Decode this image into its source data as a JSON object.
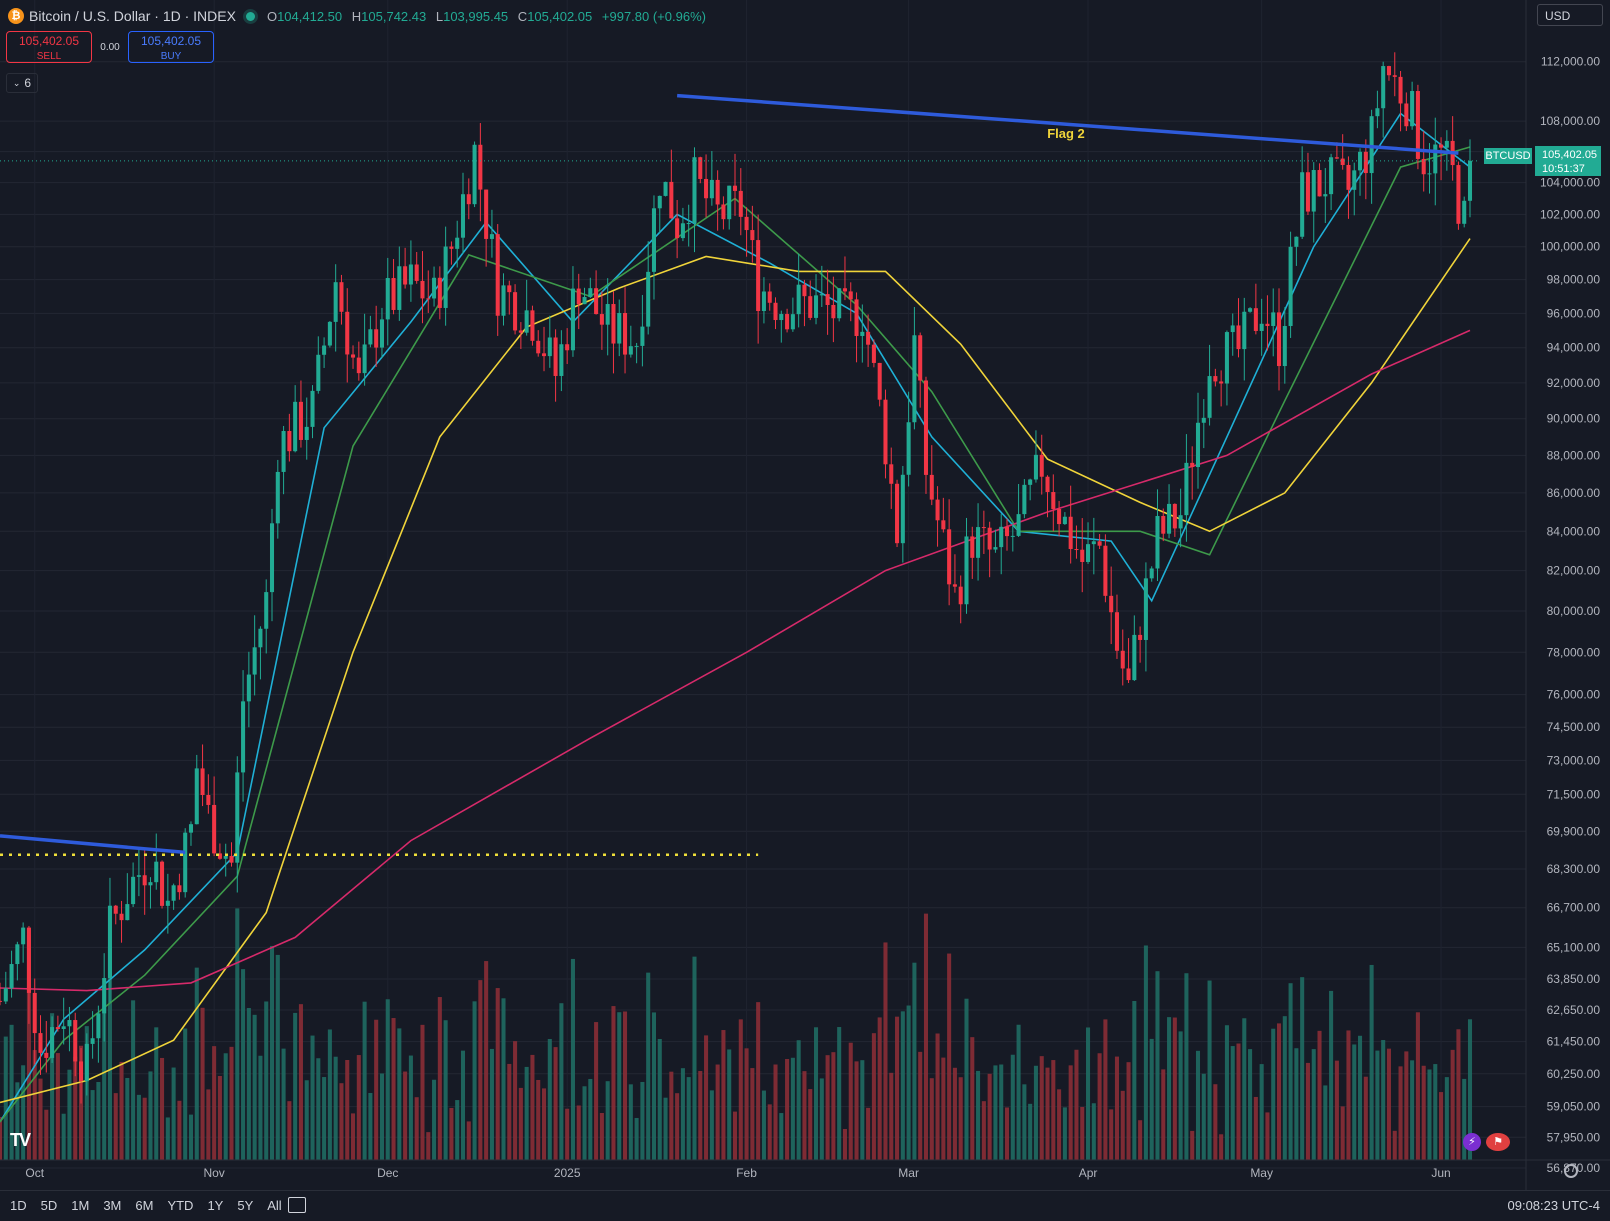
{
  "header": {
    "coin_icon": "bitcoin-icon",
    "symbol_title": "Bitcoin / U.S. Dollar · 1D · INDEX",
    "open_label": "O",
    "open": "104,412.50",
    "high_label": "H",
    "high": "105,742.43",
    "low_label": "L",
    "low": "103,995.45",
    "close_label": "C",
    "close": "105,402.05",
    "change": "+997.80 (+0.96%)"
  },
  "trade": {
    "sell_price": "105,402.05",
    "sell_label": "SELL",
    "spread": "0.00",
    "buy_price": "105,402.05",
    "buy_label": "BUY"
  },
  "indicators_toggle": "6",
  "currency": "USD",
  "price_axis": {
    "labels": [
      "112,000.00",
      "108,000.00",
      "106,000.00",
      "104,000.00",
      "102,000.00",
      "100,000.00",
      "98,000.00",
      "96,000.00",
      "94,000.00",
      "92,000.00",
      "90,000.00",
      "88,000.00",
      "86,000.00",
      "84,000.00",
      "82,000.00",
      "80,000.00",
      "78,000.00",
      "76,000.00",
      "74,500.00",
      "73,000.00",
      "71,500.00",
      "69,900.00",
      "68,300.00",
      "66,700.00",
      "65,100.00",
      "63,850.00",
      "62,650.00",
      "61,450.00",
      "60,250.00",
      "59,050.00",
      "57,950.00",
      "56,870.00"
    ],
    "last_price_tag": "105,402.05",
    "countdown": "10:51:37",
    "symbol_tag": "BTCUSD"
  },
  "time_axis": {
    "labels": [
      "Oct",
      "Nov",
      "Dec",
      "2025",
      "Feb",
      "Mar",
      "Apr",
      "May",
      "Jun"
    ]
  },
  "annotations": {
    "flag_label": "Flag 2"
  },
  "bottom": {
    "ranges": [
      "1D",
      "5D",
      "1M",
      "3M",
      "6M",
      "YTD",
      "1Y",
      "5Y",
      "All"
    ],
    "clock": "09:08:23 UTC-4",
    "logo": "TV"
  },
  "colors": {
    "background": "#161a25",
    "up": "#22ab94",
    "down": "#f23645",
    "ma_fast": "#1fb0d6",
    "ma_mid": "#3d9a4a",
    "ma_slow": "#f0d43a",
    "ma_long": "#d62a6a",
    "trendline": "#2e5bdb",
    "support": "#f0e03a"
  },
  "chart_data": {
    "type": "candlestick",
    "title": "Bitcoin / U.S. Dollar · 1D · INDEX",
    "x_range": [
      "2024-09-25",
      "2025-06-06"
    ],
    "y_scale": "log",
    "y_range": [
      56870,
      113500
    ],
    "grid": true,
    "anchors": [
      [
        "2024-09-25",
        63000
      ],
      [
        "2024-09-29",
        65500
      ],
      [
        "2024-10-02",
        61200
      ],
      [
        "2024-10-06",
        62600
      ],
      [
        "2024-10-10",
        60400
      ],
      [
        "2024-10-14",
        65800
      ],
      [
        "2024-10-17",
        67400
      ],
      [
        "2024-10-21",
        68900
      ],
      [
        "2024-10-24",
        66900
      ],
      [
        "2024-10-28",
        69900
      ],
      [
        "2024-10-29",
        72700
      ],
      [
        "2024-10-31",
        70500
      ],
      [
        "2024-11-04",
        68500
      ],
      [
        "2024-11-06",
        75800
      ],
      [
        "2024-11-10",
        80500
      ],
      [
        "2024-11-12",
        88500
      ],
      [
        "2024-11-18",
        90500
      ],
      [
        "2024-11-22",
        98000
      ],
      [
        "2024-11-26",
        91800
      ],
      [
        "2024-11-30",
        96400
      ],
      [
        "2024-12-05",
        97800
      ],
      [
        "2024-12-09",
        96800
      ],
      [
        "2024-12-12",
        100000
      ],
      [
        "2024-12-16",
        106000
      ],
      [
        "2024-12-20",
        97500
      ],
      [
        "2024-12-26",
        95800
      ],
      [
        "2024-12-30",
        92500
      ],
      [
        "2025-01-03",
        97900
      ],
      [
        "2025-01-08",
        95000
      ],
      [
        "2025-01-13",
        94500
      ],
      [
        "2025-01-17",
        104500
      ],
      [
        "2025-01-20",
        101500
      ],
      [
        "2025-01-23",
        104000
      ],
      [
        "2025-01-27",
        102000
      ],
      [
        "2025-01-31",
        102400
      ],
      [
        "2025-02-03",
        97700
      ],
      [
        "2025-02-07",
        96500
      ],
      [
        "2025-02-13",
        96600
      ],
      [
        "2025-02-18",
        95700
      ],
      [
        "2025-02-21",
        96200
      ],
      [
        "2025-02-25",
        88700
      ],
      [
        "2025-02-27",
        84000
      ],
      [
        "2025-03-02",
        94200
      ],
      [
        "2025-03-04",
        87200
      ],
      [
        "2025-03-09",
        80700
      ],
      [
        "2025-03-12",
        83700
      ],
      [
        "2025-03-16",
        82600
      ],
      [
        "2025-03-20",
        84200
      ],
      [
        "2025-03-24",
        87500
      ],
      [
        "2025-03-28",
        84400
      ],
      [
        "2025-03-31",
        82500
      ],
      [
        "2025-04-03",
        83200
      ],
      [
        "2025-04-06",
        78300
      ],
      [
        "2025-04-08",
        76300
      ],
      [
        "2025-04-10",
        79600
      ],
      [
        "2025-04-13",
        83700
      ],
      [
        "2025-04-17",
        84900
      ],
      [
        "2025-04-22",
        93400
      ],
      [
        "2025-04-27",
        93800
      ],
      [
        "2025-05-01",
        96500
      ],
      [
        "2025-05-04",
        94300
      ],
      [
        "2025-05-08",
        103200
      ],
      [
        "2025-05-12",
        104100
      ],
      [
        "2025-05-16",
        103500
      ],
      [
        "2025-05-20",
        106800
      ],
      [
        "2025-05-22",
        111700
      ],
      [
        "2025-05-26",
        109500
      ],
      [
        "2025-05-29",
        105700
      ],
      [
        "2025-06-01",
        105700
      ],
      [
        "2025-06-03",
        104400
      ],
      [
        "2025-06-05",
        101500
      ],
      [
        "2025-06-06",
        105402
      ]
    ],
    "last": {
      "open": 104412.5,
      "high": 105742.43,
      "low": 103995.45,
      "close": 105402.05,
      "change": 997.8,
      "change_pct": 0.96
    },
    "moving_averages": [
      {
        "color": "ma_fast",
        "points": [
          [
            "2024-09-25",
            58500
          ],
          [
            "2024-10-06",
            62300
          ],
          [
            "2024-10-20",
            65000
          ],
          [
            "2024-11-05",
            69000
          ],
          [
            "2024-11-20",
            89500
          ],
          [
            "2024-12-05",
            95500
          ],
          [
            "2024-12-18",
            101500
          ],
          [
            "2025-01-02",
            95500
          ],
          [
            "2025-01-20",
            102000
          ],
          [
            "2025-02-05",
            99000
          ],
          [
            "2025-02-20",
            96000
          ],
          [
            "2025-03-05",
            89000
          ],
          [
            "2025-03-20",
            84000
          ],
          [
            "2025-04-05",
            83500
          ],
          [
            "2025-04-12",
            80500
          ],
          [
            "2025-04-25",
            89000
          ],
          [
            "2025-05-10",
            100000
          ],
          [
            "2025-05-25",
            108500
          ],
          [
            "2025-06-06",
            105000
          ]
        ]
      },
      {
        "color": "ma_mid",
        "points": [
          [
            "2024-09-25",
            58500
          ],
          [
            "2024-10-06",
            61500
          ],
          [
            "2024-10-20",
            64000
          ],
          [
            "2024-11-05",
            68000
          ],
          [
            "2024-11-25",
            88500
          ],
          [
            "2024-12-15",
            99500
          ],
          [
            "2025-01-05",
            97000
          ],
          [
            "2025-01-30",
            103000
          ],
          [
            "2025-02-20",
            96500
          ],
          [
            "2025-03-05",
            91500
          ],
          [
            "2025-03-20",
            84000
          ],
          [
            "2025-04-10",
            84000
          ],
          [
            "2025-04-22",
            82800
          ],
          [
            "2025-05-05",
            91000
          ],
          [
            "2025-05-25",
            105000
          ],
          [
            "2025-06-06",
            106300
          ]
        ]
      },
      {
        "color": "ma_slow",
        "points": [
          [
            "2024-09-25",
            59200
          ],
          [
            "2024-10-10",
            60000
          ],
          [
            "2024-10-25",
            61500
          ],
          [
            "2024-11-10",
            66500
          ],
          [
            "2024-11-25",
            78000
          ],
          [
            "2024-12-10",
            89000
          ],
          [
            "2024-12-25",
            95200
          ],
          [
            "2025-01-10",
            97500
          ],
          [
            "2025-01-25",
            99400
          ],
          [
            "2025-02-10",
            98500
          ],
          [
            "2025-02-25",
            98500
          ],
          [
            "2025-03-10",
            94200
          ],
          [
            "2025-03-25",
            87800
          ],
          [
            "2025-04-10",
            85500
          ],
          [
            "2025-04-22",
            84000
          ],
          [
            "2025-05-05",
            86000
          ],
          [
            "2025-05-20",
            92000
          ],
          [
            "2025-06-06",
            100500
          ]
        ]
      },
      {
        "color": "ma_long",
        "points": [
          [
            "2024-09-25",
            63500
          ],
          [
            "2024-10-10",
            63400
          ],
          [
            "2024-10-28",
            63700
          ],
          [
            "2024-11-15",
            65500
          ],
          [
            "2024-12-05",
            69500
          ],
          [
            "2025-01-05",
            74000
          ],
          [
            "2025-02-01",
            78000
          ],
          [
            "2025-02-25",
            82000
          ],
          [
            "2025-03-25",
            85000
          ],
          [
            "2025-04-25",
            88000
          ],
          [
            "2025-05-20",
            92500
          ],
          [
            "2025-06-06",
            95000
          ]
        ]
      }
    ],
    "trendlines": [
      {
        "color": "trendline",
        "points": [
          [
            "2024-09-25",
            69700
          ],
          [
            "2024-10-27",
            69000
          ]
        ]
      },
      {
        "color": "trendline",
        "points": [
          [
            "2025-01-20",
            109700
          ],
          [
            "2025-06-04",
            105900
          ]
        ]
      }
    ],
    "horizontal_levels": [
      {
        "color": "support",
        "value": 68900,
        "from": "2024-09-25",
        "to": "2025-02-03",
        "style": "dotted"
      }
    ]
  }
}
